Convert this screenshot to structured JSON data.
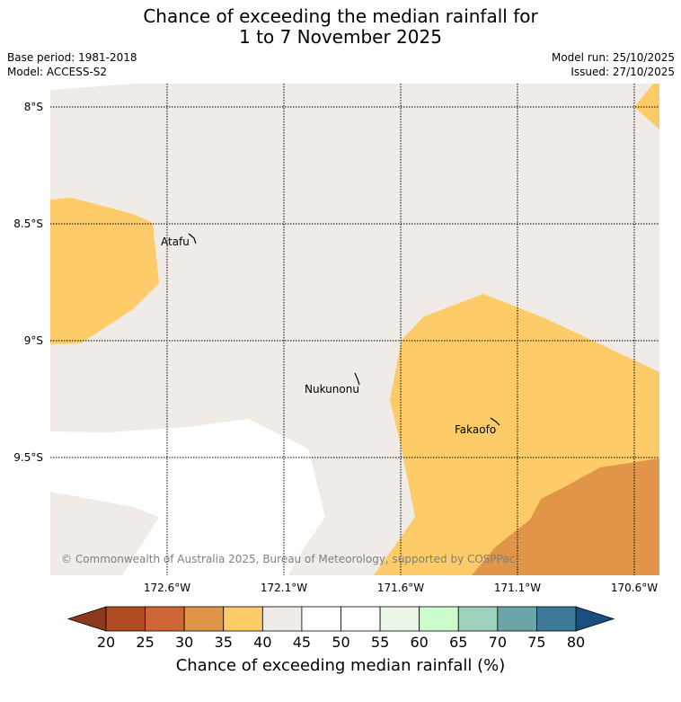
{
  "title_line1": "Chance of exceeding the median rainfall for",
  "title_line2": "1 to 7 November 2025",
  "base_period": "Base period: 1981-2018",
  "model": "Model: ACCESS-S2",
  "model_run": "Model run: 25/10/2025",
  "issued": "Issued: 27/10/2025",
  "lat_labels": [
    "8°S",
    "8.5°S",
    "9°S",
    "9.5°S"
  ],
  "lon_labels": [
    "172.6°W",
    "172.1°W",
    "171.6°W",
    "171.1°W",
    "170.6°W"
  ],
  "places": {
    "atafu": "Atafu",
    "nukunonu": "Nukunonu",
    "fakaofo": "Fakaofo"
  },
  "copyright": "© Commonwealth of Australia 2025, Bureau of Meteorology, supported by COSPPac",
  "colorbar": {
    "title": "Chance of exceeding median rainfall (%)",
    "ticks": [
      "20",
      "25",
      "30",
      "35",
      "40",
      "45",
      "50",
      "55",
      "60",
      "65",
      "70",
      "75",
      "80"
    ],
    "under_color": "#8c3a1c",
    "over_color": "#1a4d80",
    "colors": [
      "#b04a22",
      "#cd6634",
      "#e09548",
      "#fdcb68",
      "#f0ebe6",
      "#ffffff",
      "#ffffff",
      "#ebf5e8",
      "#ccfccc",
      "#9dd1bc",
      "#6ca5a8",
      "#3e7898"
    ]
  },
  "map_colors": {
    "land_bg": "#f0ebe6",
    "band_35_40": "#fdcb68",
    "band_30_35": "#e09548",
    "band_45_55": "#ffffff"
  }
}
